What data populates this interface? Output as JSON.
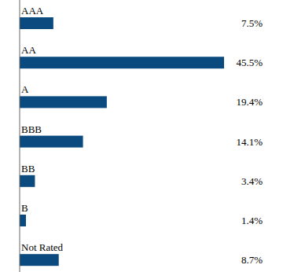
{
  "chart_data": {
    "type": "bar",
    "orientation": "horizontal",
    "categories": [
      "AAA",
      "AA",
      "A",
      "BBB",
      "BB",
      "B",
      "Not Rated"
    ],
    "values": [
      7.5,
      45.5,
      19.4,
      14.1,
      3.4,
      1.4,
      8.7
    ],
    "value_labels": [
      "7.5%",
      "45.5%",
      "19.4%",
      "14.1%",
      "3.4%",
      "1.4%",
      "8.7%"
    ],
    "color": "#0b4a7e",
    "data_labels": true,
    "tick_labels": false
  }
}
